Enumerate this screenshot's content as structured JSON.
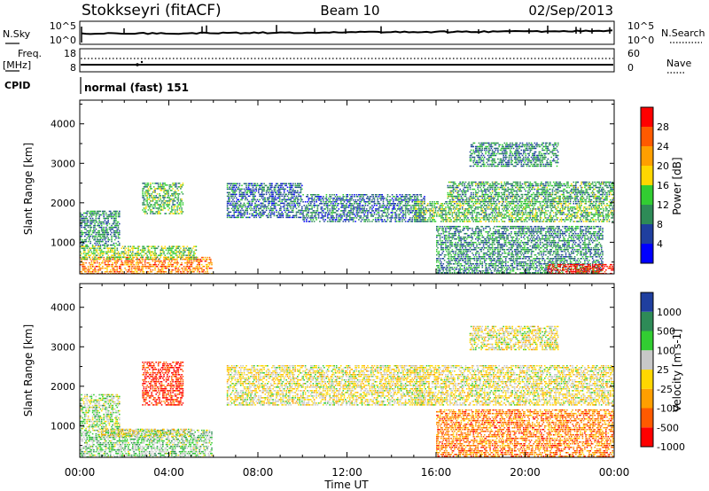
{
  "header": {
    "station": "Stokkseyri (fitACF)",
    "beam": "Beam 10",
    "date": "02/Sep/2013"
  },
  "status_panels": {
    "nsky_label": "N.Sky",
    "nsky_ticks": [
      "10^5",
      "10^0"
    ],
    "nsearch_label": "N.Search",
    "nsearch_ticks": [
      "10^5",
      "10^0"
    ],
    "freq_label": "Freq.",
    "freq_unit": "[MHz]",
    "freq_ticks": [
      "18",
      "8"
    ],
    "nave_label": "Nave",
    "nave_ticks": [
      "60",
      "0"
    ],
    "cpid_label": "CPID",
    "cpid_value": "normal (fast) 151"
  },
  "colors": {
    "power": [
      "#0000ff",
      "#1f3f9f",
      "#2e8b57",
      "#32cd32",
      "#ffd700",
      "#ff9f00",
      "#ff5a00",
      "#ff0000"
    ],
    "velocity": [
      "#ff0000",
      "#ff5a00",
      "#ff9f00",
      "#ffd700",
      "#c8c8c8",
      "#32cd32",
      "#2e8b57",
      "#1f3f9f"
    ]
  },
  "chart_data": [
    {
      "type": "heatmap",
      "quantity": "power",
      "ylabel": "Slant Range [km]",
      "xlabel": "Time UT",
      "x_ticks": [
        "00:00",
        "04:00",
        "08:00",
        "12:00",
        "16:00",
        "20:00",
        "00:00"
      ],
      "y_ticks": [
        1000,
        2000,
        3000,
        4000
      ],
      "xlim_hours": [
        0,
        24
      ],
      "ylim_km": [
        200,
        4600
      ],
      "colorbar_label": "Power [dB]",
      "colorbar_ticks": [
        4,
        8,
        12,
        16,
        20,
        24,
        28
      ],
      "colorbar_range": [
        0,
        32
      ],
      "regions": [
        {
          "t0": 0.0,
          "t1": 5.9,
          "r0": 180,
          "r1": 600,
          "level": 0.75
        },
        {
          "t0": 0.0,
          "t1": 5.2,
          "r0": 550,
          "r1": 900,
          "level": 0.45
        },
        {
          "t0": 0.0,
          "t1": 1.8,
          "r0": 900,
          "r1": 1800,
          "level": 0.3
        },
        {
          "t0": 2.8,
          "t1": 4.6,
          "r0": 1700,
          "r1": 2500,
          "level": 0.4
        },
        {
          "t0": 6.6,
          "t1": 10.0,
          "r0": 1600,
          "r1": 2500,
          "level": 0.25
        },
        {
          "t0": 10.0,
          "t1": 15.5,
          "r0": 1500,
          "r1": 2200,
          "level": 0.25
        },
        {
          "t0": 15.0,
          "t1": 24.0,
          "r0": 1500,
          "r1": 2000,
          "level": 0.4
        },
        {
          "t0": 16.5,
          "t1": 24.0,
          "r0": 2000,
          "r1": 2500,
          "level": 0.35
        },
        {
          "t0": 17.5,
          "t1": 21.5,
          "r0": 2900,
          "r1": 3500,
          "level": 0.3
        },
        {
          "t0": 16.0,
          "t1": 23.5,
          "r0": 200,
          "r1": 1400,
          "level": 0.3
        },
        {
          "t0": 21.0,
          "t1": 24.0,
          "r0": 180,
          "r1": 450,
          "level": 0.95
        }
      ]
    },
    {
      "type": "heatmap",
      "quantity": "velocity",
      "ylabel": "Slant Range [km]",
      "xlabel": "Time UT",
      "x_ticks": [
        "00:00",
        "04:00",
        "08:00",
        "12:00",
        "16:00",
        "20:00",
        "00:00"
      ],
      "y_ticks": [
        1000,
        2000,
        3000,
        4000
      ],
      "xlim_hours": [
        0,
        24
      ],
      "ylim_km": [
        200,
        4600
      ],
      "colorbar_label": "Velocity [m s-1]",
      "colorbar_ticks": [
        "1000",
        "500",
        "100",
        "25",
        "-25",
        "-100",
        "-500",
        "-1000"
      ],
      "regions": [
        {
          "t0": 0.0,
          "t1": 5.9,
          "r0": 180,
          "r1": 900,
          "level": 0.65
        },
        {
          "t0": 0.8,
          "t1": 5.0,
          "r0": 700,
          "r1": 900,
          "level": 0.5
        },
        {
          "t0": 0.0,
          "t1": 1.8,
          "r0": 900,
          "r1": 1800,
          "level": 0.6
        },
        {
          "t0": 2.8,
          "t1": 4.6,
          "r0": 1500,
          "r1": 2600,
          "level": 0.1
        },
        {
          "t0": 6.6,
          "t1": 15.5,
          "r0": 1500,
          "r1": 2500,
          "level": 0.5
        },
        {
          "t0": 15.0,
          "t1": 24.0,
          "r0": 1500,
          "r1": 2500,
          "level": 0.5
        },
        {
          "t0": 17.5,
          "t1": 21.5,
          "r0": 2900,
          "r1": 3500,
          "level": 0.5
        },
        {
          "t0": 16.0,
          "t1": 24.0,
          "r0": 200,
          "r1": 1400,
          "level": 0.25
        }
      ]
    }
  ]
}
